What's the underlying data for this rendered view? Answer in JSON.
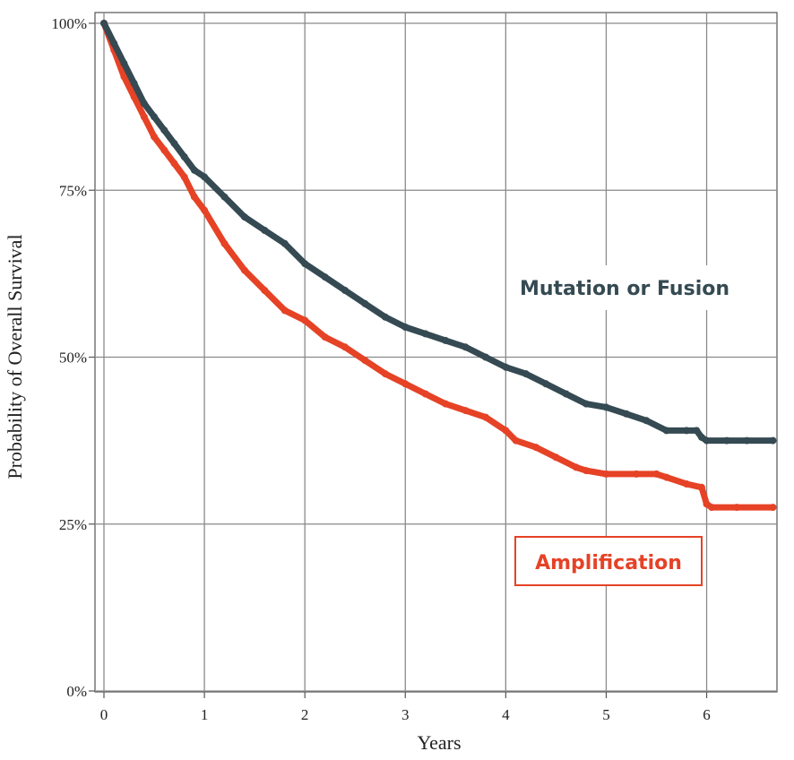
{
  "chart_data": {
    "type": "line",
    "title": "",
    "xlabel": "Years",
    "ylabel": "Probability of Overall Survival",
    "xlim": [
      0,
      6.7
    ],
    "ylim": [
      0,
      100
    ],
    "xticks": [
      0,
      1,
      2,
      3,
      4,
      5,
      6
    ],
    "xtick_labels": [
      "0",
      "1",
      "2",
      "3",
      "4",
      "5",
      "6"
    ],
    "yticks": [
      0,
      25,
      50,
      75,
      100
    ],
    "ytick_labels": [
      "0%",
      "25%",
      "50%",
      "75%",
      "100%"
    ],
    "grid": true,
    "series": [
      {
        "name": "Mutation or Fusion",
        "color": "#354a52",
        "x": [
          0,
          0.1,
          0.2,
          0.3,
          0.4,
          0.5,
          0.6,
          0.7,
          0.8,
          0.9,
          1.0,
          1.2,
          1.4,
          1.6,
          1.8,
          2.0,
          2.2,
          2.4,
          2.6,
          2.8,
          3.0,
          3.2,
          3.4,
          3.6,
          3.8,
          4.0,
          4.2,
          4.4,
          4.6,
          4.8,
          5.0,
          5.2,
          5.4,
          5.6,
          5.8,
          5.9,
          5.95,
          6.0,
          6.2,
          6.4,
          6.66
        ],
        "y": [
          100,
          97,
          94,
          91,
          88,
          86,
          84,
          82,
          80,
          78,
          77,
          74,
          71,
          69,
          67,
          64,
          62,
          60,
          58,
          56,
          54.5,
          53.5,
          52.5,
          51.5,
          50,
          48.5,
          47.5,
          46,
          44.5,
          43,
          42.5,
          41.5,
          40.5,
          39,
          39,
          39,
          38,
          37.5,
          37.5,
          37.5,
          37.5
        ]
      },
      {
        "name": "Amplification",
        "color": "#e64226",
        "x": [
          0,
          0.1,
          0.2,
          0.3,
          0.4,
          0.5,
          0.6,
          0.7,
          0.8,
          0.9,
          1.0,
          1.2,
          1.4,
          1.6,
          1.8,
          2.0,
          2.2,
          2.4,
          2.6,
          2.8,
          3.0,
          3.2,
          3.4,
          3.6,
          3.8,
          4.0,
          4.1,
          4.3,
          4.5,
          4.7,
          4.8,
          5.0,
          5.3,
          5.5,
          5.6,
          5.8,
          5.95,
          6.0,
          6.05,
          6.3,
          6.66
        ],
        "y": [
          100,
          96,
          92,
          89,
          86,
          83,
          81,
          79,
          77,
          74,
          72,
          67,
          63,
          60,
          57,
          55.5,
          53,
          51.5,
          49.5,
          47.5,
          46,
          44.5,
          43,
          42,
          41,
          39,
          37.5,
          36.5,
          35,
          33.5,
          33,
          32.5,
          32.5,
          32.5,
          32,
          31,
          30.5,
          28,
          27.5,
          27.5,
          27.5
        ]
      }
    ],
    "annotations": [
      {
        "text": "Mutation or Fusion",
        "boxed": false
      },
      {
        "text": "Amplification",
        "boxed": true
      }
    ]
  }
}
